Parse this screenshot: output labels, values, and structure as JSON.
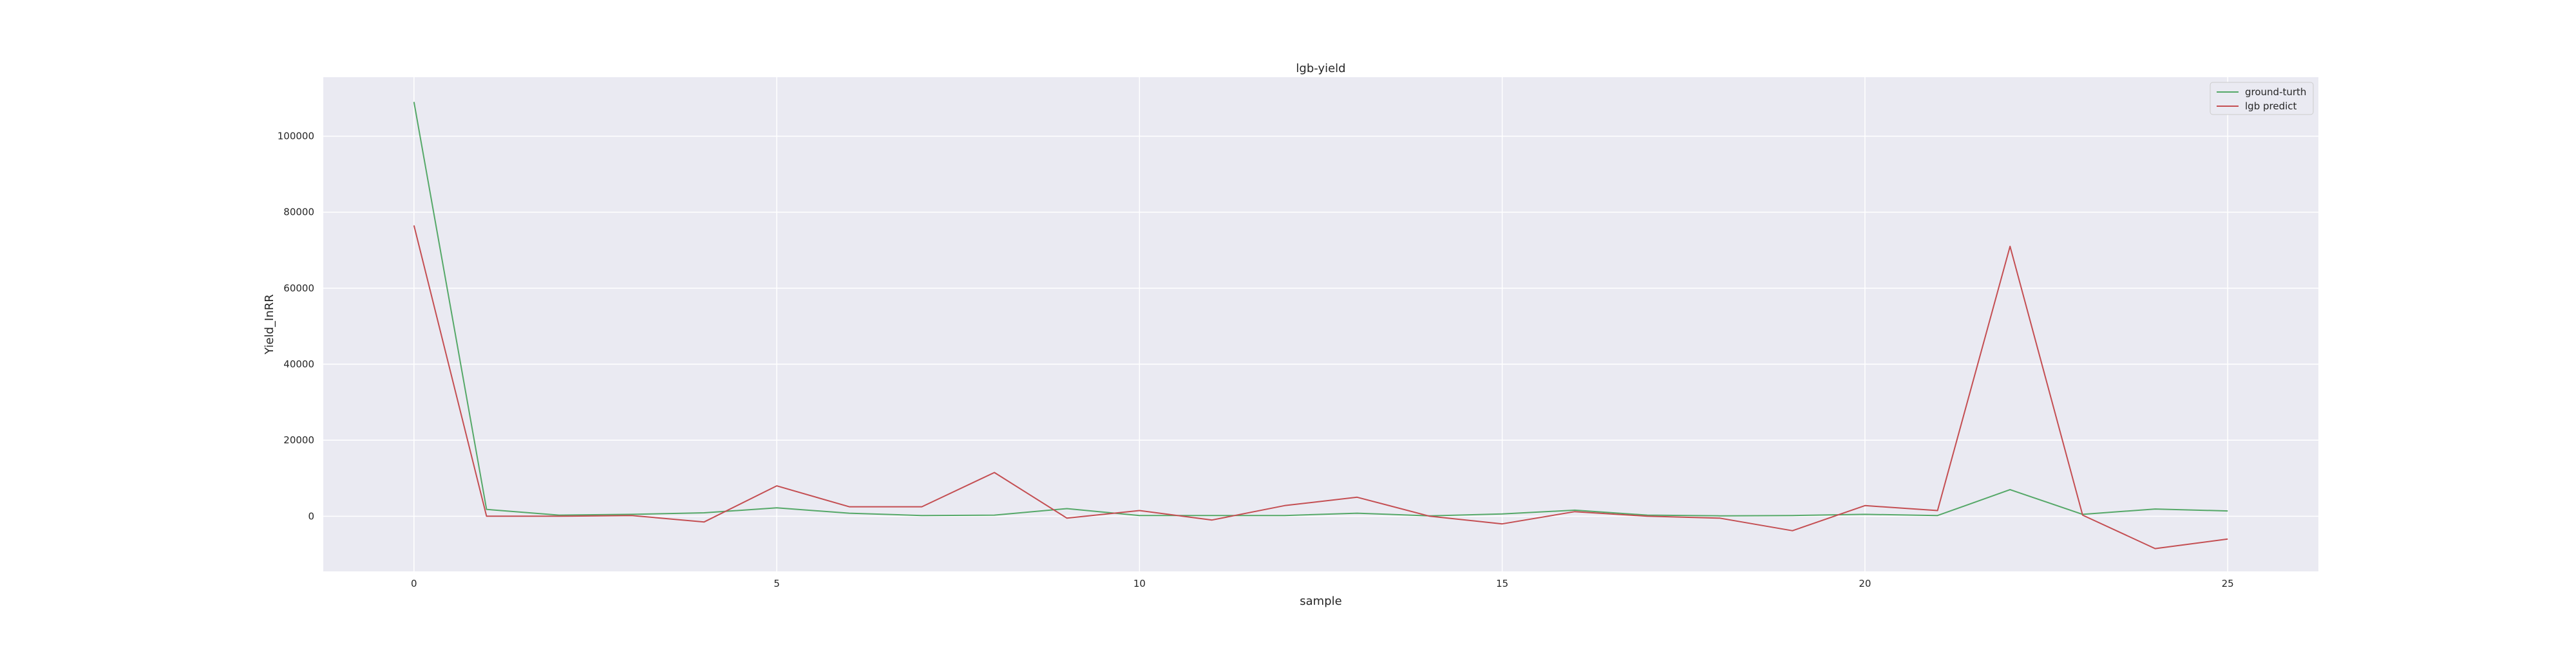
{
  "chart_data": {
    "type": "line",
    "title": "lgb-yield",
    "xlabel": "sample",
    "ylabel": "Yield_InRR",
    "x": [
      0,
      1,
      2,
      3,
      4,
      5,
      6,
      7,
      8,
      9,
      10,
      11,
      12,
      13,
      14,
      15,
      16,
      17,
      18,
      19,
      20,
      21,
      22,
      23,
      24,
      25
    ],
    "xlim": [
      -1.25,
      26.25
    ],
    "ylim": [
      -14500,
      115500
    ],
    "xticks": [
      0,
      5,
      10,
      15,
      20,
      25
    ],
    "yticks": [
      0,
      20000,
      40000,
      60000,
      80000,
      100000
    ],
    "grid": true,
    "legend_position": "top-right",
    "background_color": "#eaeaf2",
    "series": [
      {
        "name": "ground-turth",
        "color": "#55a868",
        "values": [
          109000,
          1800,
          300,
          500,
          900,
          2200,
          800,
          200,
          300,
          2000,
          200,
          200,
          200,
          800,
          100,
          600,
          1600,
          300,
          100,
          200,
          500,
          200,
          7000,
          500,
          1900,
          1400
        ]
      },
      {
        "name": "lgb predict",
        "color": "#c44e52",
        "values": [
          76500,
          0,
          0,
          200,
          -1500,
          8000,
          2500,
          2500,
          11500,
          -500,
          1500,
          -1000,
          2800,
          5000,
          0,
          -2000,
          1200,
          0,
          -500,
          -3800,
          2800,
          1500,
          71000,
          300,
          -8500,
          -6000
        ]
      }
    ]
  }
}
